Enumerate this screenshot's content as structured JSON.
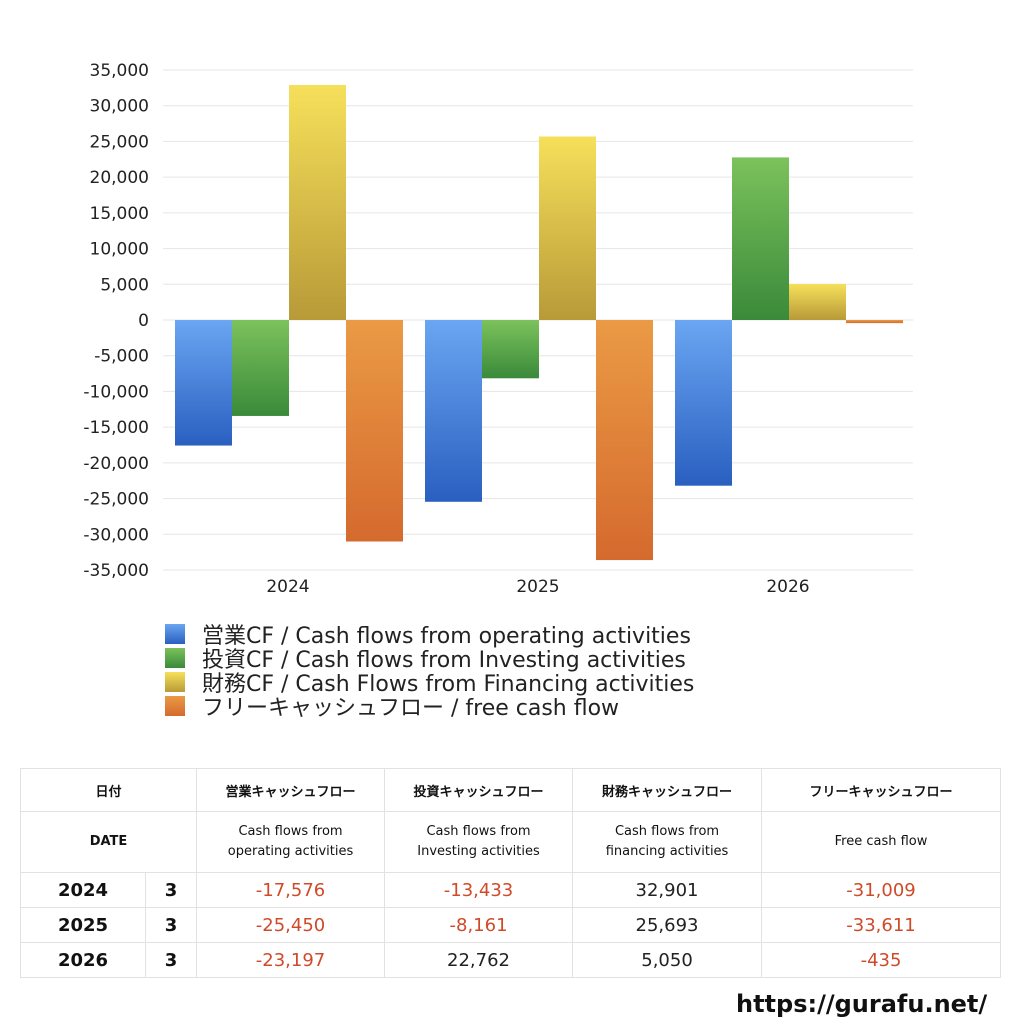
{
  "chart_data": {
    "type": "bar",
    "categories": [
      "2024",
      "2025",
      "2026"
    ],
    "series": [
      {
        "name": "営業CF / Cash flows from operating activities",
        "values": [
          -17576,
          -25450,
          -23197
        ],
        "color": "#4a86e0",
        "color_light": "#6aa6f2",
        "color_dark": "#2a5fc0"
      },
      {
        "name": "投資CF / Cash flows from Investing activities",
        "values": [
          -13433,
          -8161,
          22762
        ],
        "color": "#5ba84a",
        "color_light": "#7cc25c",
        "color_dark": "#3a8a3a"
      },
      {
        "name": "財務CF / Cash Flows from Financing activities",
        "values": [
          32901,
          25693,
          5050
        ],
        "color": "#e8c840",
        "color_light": "#f6e05a",
        "color_dark": "#b89a38"
      },
      {
        "name": "フリーキャッシュフロー / free cash flow",
        "values": [
          -31009,
          -33611,
          -435
        ],
        "color": "#e08838",
        "color_light": "#ea9a45",
        "color_dark": "#d56a2e"
      }
    ],
    "ylim": [
      -35000,
      35000
    ],
    "ytick_step": 5000,
    "grid": true,
    "legend": "bottom-left"
  },
  "table": {
    "headers": [
      "日付",
      "営業キャッシュフロー",
      "投資キャッシュフロー",
      "財務キャッシュフロー",
      "フリーキャッシュフロー"
    ],
    "subheaders": [
      "DATE",
      "Cash flows from\noperating activities",
      "Cash flows from\nInvesting activities",
      "Cash flows from\nfinancing activities",
      "Free cash flow"
    ],
    "rows": [
      {
        "year": "2024",
        "month": "3",
        "values": [
          "-17,576",
          "-13,433",
          "32,901",
          "-31,009"
        ]
      },
      {
        "year": "2025",
        "month": "3",
        "values": [
          "-25,450",
          "-8,161",
          "25,693",
          "-33,611"
        ]
      },
      {
        "year": "2026",
        "month": "3",
        "values": [
          "-23,197",
          "22,762",
          "5,050",
          "-435"
        ]
      }
    ]
  },
  "site": "https://gurafu.net/",
  "colors": {
    "negative": "#d04a2a",
    "positive": "#222222"
  }
}
